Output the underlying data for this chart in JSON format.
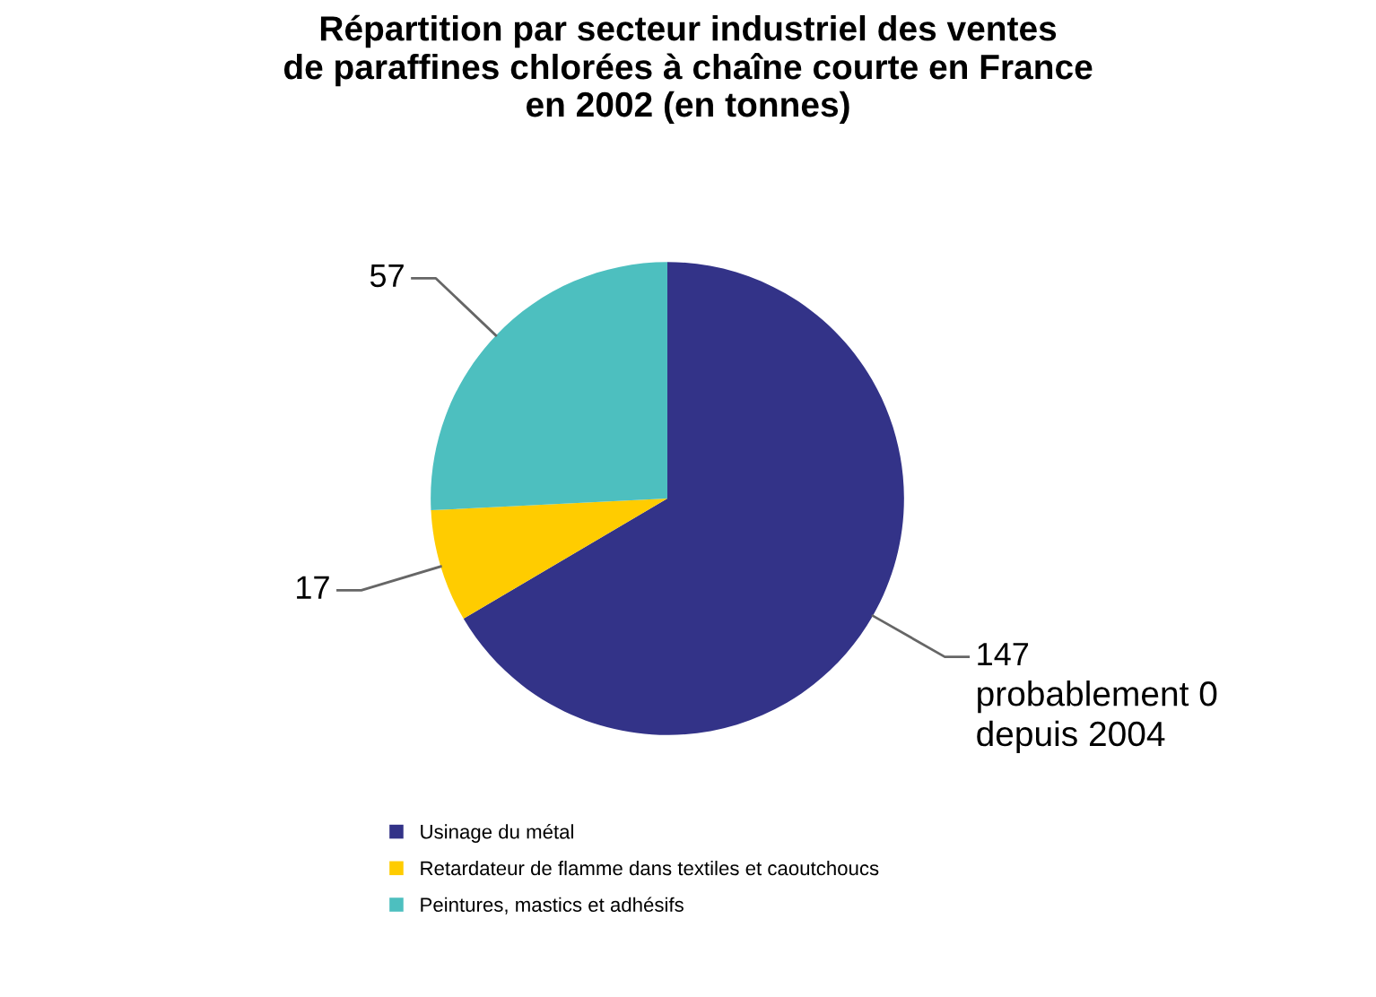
{
  "chart_data": {
    "type": "pie",
    "title": "Répartition par secteur industriel des ventes\nde paraffines chlorées à chaîne courte en France\nen 2002 (en tonnes)",
    "categories": [
      "Usinage du métal",
      "Retardateur de flamme dans textiles et caoutchoucs",
      "Peintures, mastics et adhésifs"
    ],
    "values": [
      147,
      17,
      57
    ],
    "colors": [
      "#333388",
      "#ffcc00",
      "#4dbfbf"
    ],
    "data_labels": true,
    "legend": "bottom",
    "annotations": [
      "probablement 0\ndepuis 2004"
    ]
  }
}
